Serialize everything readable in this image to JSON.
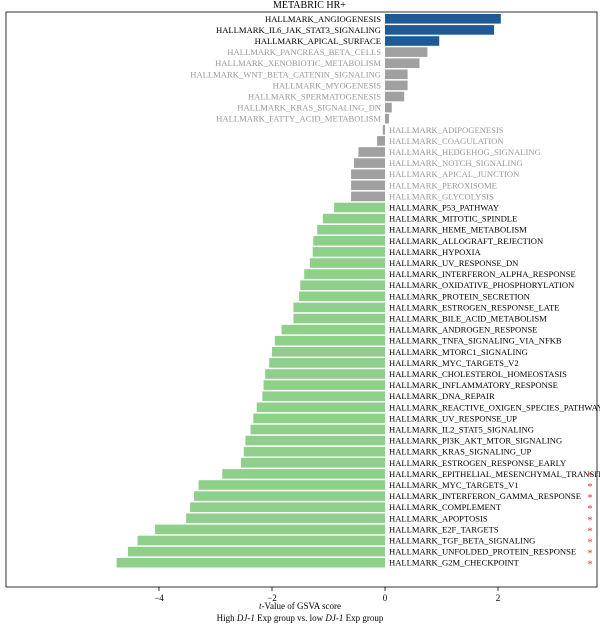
{
  "chart_data": {
    "type": "bar",
    "orientation": "horizontal",
    "title": "METABRIC HR+",
    "xlabel_line1_parts": [
      {
        "text": "t",
        "italic": true
      },
      {
        "text": "-Value of GSVA score",
        "italic": false
      }
    ],
    "xlabel_line2_parts": [
      {
        "text": "High ",
        "italic": false
      },
      {
        "text": "DJ-1",
        "italic": true
      },
      {
        "text": " Exp group vs. low ",
        "italic": false
      },
      {
        "text": "DJ-1",
        "italic": true
      },
      {
        "text": " Exp group",
        "italic": false
      }
    ],
    "xlim": [
      -5.0,
      3.5
    ],
    "xticks": [
      -4,
      -2,
      0,
      2
    ],
    "xtick_labels": [
      "−4",
      "−2",
      "0",
      "2"
    ],
    "grid": false,
    "colors": {
      "positive_significant": "#1f5a96",
      "not_significant": "#a0a0a0",
      "negative_significant": "#8ed08a",
      "label_significant": "#000000",
      "label_not_significant": "#999999",
      "star": "#e03a2f"
    },
    "bars": [
      {
        "label": "HALLMARK_ANGIOGENESIS",
        "value": 2.05,
        "group": "positive_significant",
        "star": false
      },
      {
        "label": "HALLMARK_IL6_JAK_STAT3_SIGNALING",
        "value": 1.93,
        "group": "positive_significant",
        "star": false
      },
      {
        "label": "HALLMARK_APICAL_SURFACE",
        "value": 0.96,
        "group": "positive_significant",
        "star": false
      },
      {
        "label": "HALLMARK_PANCREAS_BETA_CELLS",
        "value": 0.75,
        "group": "not_significant",
        "star": false
      },
      {
        "label": "HALLMARK_XENOBIOTIC_METABOLISM",
        "value": 0.61,
        "group": "not_significant",
        "star": false
      },
      {
        "label": "HALLMARK_WNT_BETA_CATENIN_SIGNALING",
        "value": 0.4,
        "group": "not_significant",
        "star": false
      },
      {
        "label": "HALLMARK_MYOGENESIS",
        "value": 0.4,
        "group": "not_significant",
        "star": false
      },
      {
        "label": "HALLMARK_SPERMATOGENESIS",
        "value": 0.34,
        "group": "not_significant",
        "star": false
      },
      {
        "label": "HALLMARK_KRAS_SIGNALING_DN",
        "value": 0.12,
        "group": "not_significant",
        "star": false
      },
      {
        "label": "HALLMARK_FATTY_ACID_METABOLISM",
        "value": 0.07,
        "group": "not_significant",
        "star": false
      },
      {
        "label": "HALLMARK_ADIPOGENESIS",
        "value": -0.04,
        "group": "not_significant",
        "star": false
      },
      {
        "label": "HALLMARK_COAGULATION",
        "value": -0.14,
        "group": "not_significant",
        "star": false
      },
      {
        "label": "HALLMARK_HEDGEHOG_SIGNALING",
        "value": -0.47,
        "group": "not_significant",
        "star": false
      },
      {
        "label": "HALLMARK_NOTCH_SIGNALING",
        "value": -0.55,
        "group": "not_significant",
        "star": false
      },
      {
        "label": "HALLMARK_APICAL_JUNCTION",
        "value": -0.6,
        "group": "not_significant",
        "star": false
      },
      {
        "label": "HALLMARK_PEROXISOME",
        "value": -0.6,
        "group": "not_significant",
        "star": false
      },
      {
        "label": "HALLMARK_GLYCOLYSIS",
        "value": -0.6,
        "group": "not_significant",
        "star": false
      },
      {
        "label": "HALLMARK_P53_PATHWAY",
        "value": -0.9,
        "group": "negative_significant",
        "star": false
      },
      {
        "label": "HALLMARK_MITOTIC_SPINDLE",
        "value": -1.1,
        "group": "negative_significant",
        "star": false
      },
      {
        "label": "HALLMARK_HEME_METABOLISM",
        "value": -1.2,
        "group": "negative_significant",
        "star": false
      },
      {
        "label": "HALLMARK_ALLOGRAFT_REJECTION",
        "value": -1.27,
        "group": "negative_significant",
        "star": false
      },
      {
        "label": "HALLMARK_HYPOXIA",
        "value": -1.28,
        "group": "negative_significant",
        "star": false
      },
      {
        "label": "HALLMARK_UV_RESPONSE_DN",
        "value": -1.33,
        "group": "negative_significant",
        "star": false
      },
      {
        "label": "HALLMARK_INTERFERON_ALPHA_RESPONSE",
        "value": -1.43,
        "group": "negative_significant",
        "star": false
      },
      {
        "label": "HALLMARK_OXIDATIVE_PHOSPHORYLATION",
        "value": -1.5,
        "group": "negative_significant",
        "star": false
      },
      {
        "label": "HALLMARK_PROTEIN_SECRETION",
        "value": -1.52,
        "group": "negative_significant",
        "star": false
      },
      {
        "label": "HALLMARK_ESTROGEN_RESPONSE_LATE",
        "value": -1.62,
        "group": "negative_significant",
        "star": false
      },
      {
        "label": "HALLMARK_BILE_ACID_METABOLISM",
        "value": -1.62,
        "group": "negative_significant",
        "star": false
      },
      {
        "label": "HALLMARK_ANDROGEN_RESPONSE",
        "value": -1.83,
        "group": "negative_significant",
        "star": false
      },
      {
        "label": "HALLMARK_TNFA_SIGNALING_VIA_NFKB",
        "value": -1.95,
        "group": "negative_significant",
        "star": false
      },
      {
        "label": "HALLMARK_MTORC1_SIGNALING",
        "value": -2.0,
        "group": "negative_significant",
        "star": false
      },
      {
        "label": "HALLMARK_MYC_TARGETS_V2",
        "value": -2.05,
        "group": "negative_significant",
        "star": false
      },
      {
        "label": "HALLMARK_CHOLESTEROL_HOMEOSTASIS",
        "value": -2.12,
        "group": "negative_significant",
        "star": false
      },
      {
        "label": "HALLMARK_INFLAMMATORY_RESPONSE",
        "value": -2.15,
        "group": "negative_significant",
        "star": false
      },
      {
        "label": "HALLMARK_DNA_REPAIR",
        "value": -2.17,
        "group": "negative_significant",
        "star": false
      },
      {
        "label": "HALLMARK_REACTIVE_OXIGEN_SPECIES_PATHWAY",
        "value": -2.27,
        "group": "negative_significant",
        "star": false
      },
      {
        "label": "HALLMARK_UV_RESPONSE_UP",
        "value": -2.33,
        "group": "negative_significant",
        "star": false
      },
      {
        "label": "HALLMARK_IL2_STAT5_SIGNALING",
        "value": -2.38,
        "group": "negative_significant",
        "star": false
      },
      {
        "label": "HALLMARK_PI3K_AKT_MTOR_SIGNALING",
        "value": -2.47,
        "group": "negative_significant",
        "star": false
      },
      {
        "label": "HALLMARK_KRAS_SIGNALING_UP",
        "value": -2.5,
        "group": "negative_significant",
        "star": false
      },
      {
        "label": "HALLMARK_ESTROGEN_RESPONSE_EARLY",
        "value": -2.55,
        "group": "negative_significant",
        "star": false
      },
      {
        "label": "HALLMARK_EPITHELIAL_MESENCHYMAL_TRANSITION",
        "value": -2.88,
        "group": "negative_significant",
        "star": true
      },
      {
        "label": "HALLMARK_MYC_TARGETS_V1",
        "value": -3.3,
        "group": "negative_significant",
        "star": true
      },
      {
        "label": "HALLMARK_INTERFERON_GAMMA_RESPONSE",
        "value": -3.38,
        "group": "negative_significant",
        "star": true
      },
      {
        "label": "HALLMARK_COMPLEMENT",
        "value": -3.45,
        "group": "negative_significant",
        "star": true
      },
      {
        "label": "HALLMARK_APOPTOSIS",
        "value": -3.52,
        "group": "negative_significant",
        "star": true
      },
      {
        "label": "HALLMARK_E2F_TARGETS",
        "value": -4.07,
        "group": "negative_significant",
        "star": true
      },
      {
        "label": "HALLMARK_TGF_BETA_SIGNALING",
        "value": -4.38,
        "group": "negative_significant",
        "star": true
      },
      {
        "label": "HALLMARK_UNFOLDED_PROTEIN_RESPONSE",
        "value": -4.55,
        "group": "negative_significant",
        "star": true
      },
      {
        "label": "HALLMARK_G2M_CHECKPOINT",
        "value": -4.75,
        "group": "negative_significant",
        "star": true
      }
    ],
    "star_symbol": "*"
  }
}
